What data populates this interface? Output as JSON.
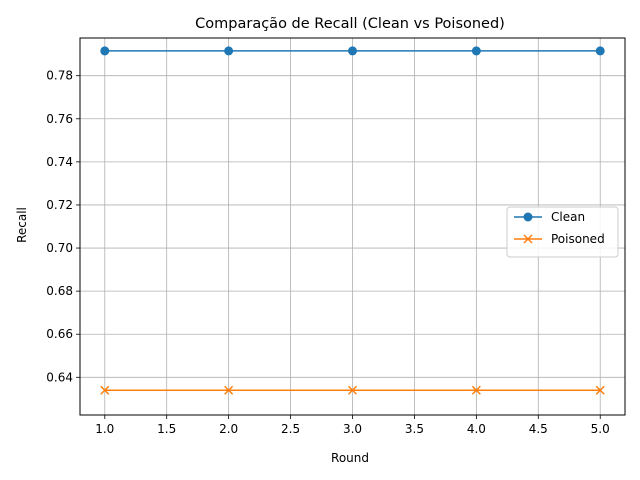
{
  "chart_data": {
    "type": "line",
    "title": "Comparação de Recall (Clean vs Poisoned)",
    "xlabel": "Round",
    "ylabel": "Recall",
    "x": [
      1,
      2,
      3,
      4,
      5
    ],
    "xlim": [
      0.8,
      5.2
    ],
    "ylim": [
      0.6225,
      0.7975
    ],
    "xticks": [
      1.0,
      1.5,
      2.0,
      2.5,
      3.0,
      3.5,
      4.0,
      4.5,
      5.0
    ],
    "xtick_labels": [
      "1.0",
      "1.5",
      "2.0",
      "2.5",
      "3.0",
      "3.5",
      "4.0",
      "4.5",
      "5.0"
    ],
    "yticks": [
      0.64,
      0.66,
      0.68,
      0.7,
      0.72,
      0.74,
      0.76,
      0.78
    ],
    "ytick_labels": [
      "0.64",
      "0.66",
      "0.68",
      "0.70",
      "0.72",
      "0.74",
      "0.76",
      "0.78"
    ],
    "grid": true,
    "legend_position": "center-right",
    "series": [
      {
        "name": "Clean",
        "values": [
          0.7915,
          0.7915,
          0.7915,
          0.7915,
          0.7915
        ],
        "color": "#1f77b4",
        "marker": "circle"
      },
      {
        "name": "Poisoned",
        "values": [
          0.634,
          0.634,
          0.634,
          0.634,
          0.634
        ],
        "color": "#ff7f0e",
        "marker": "x"
      }
    ]
  }
}
